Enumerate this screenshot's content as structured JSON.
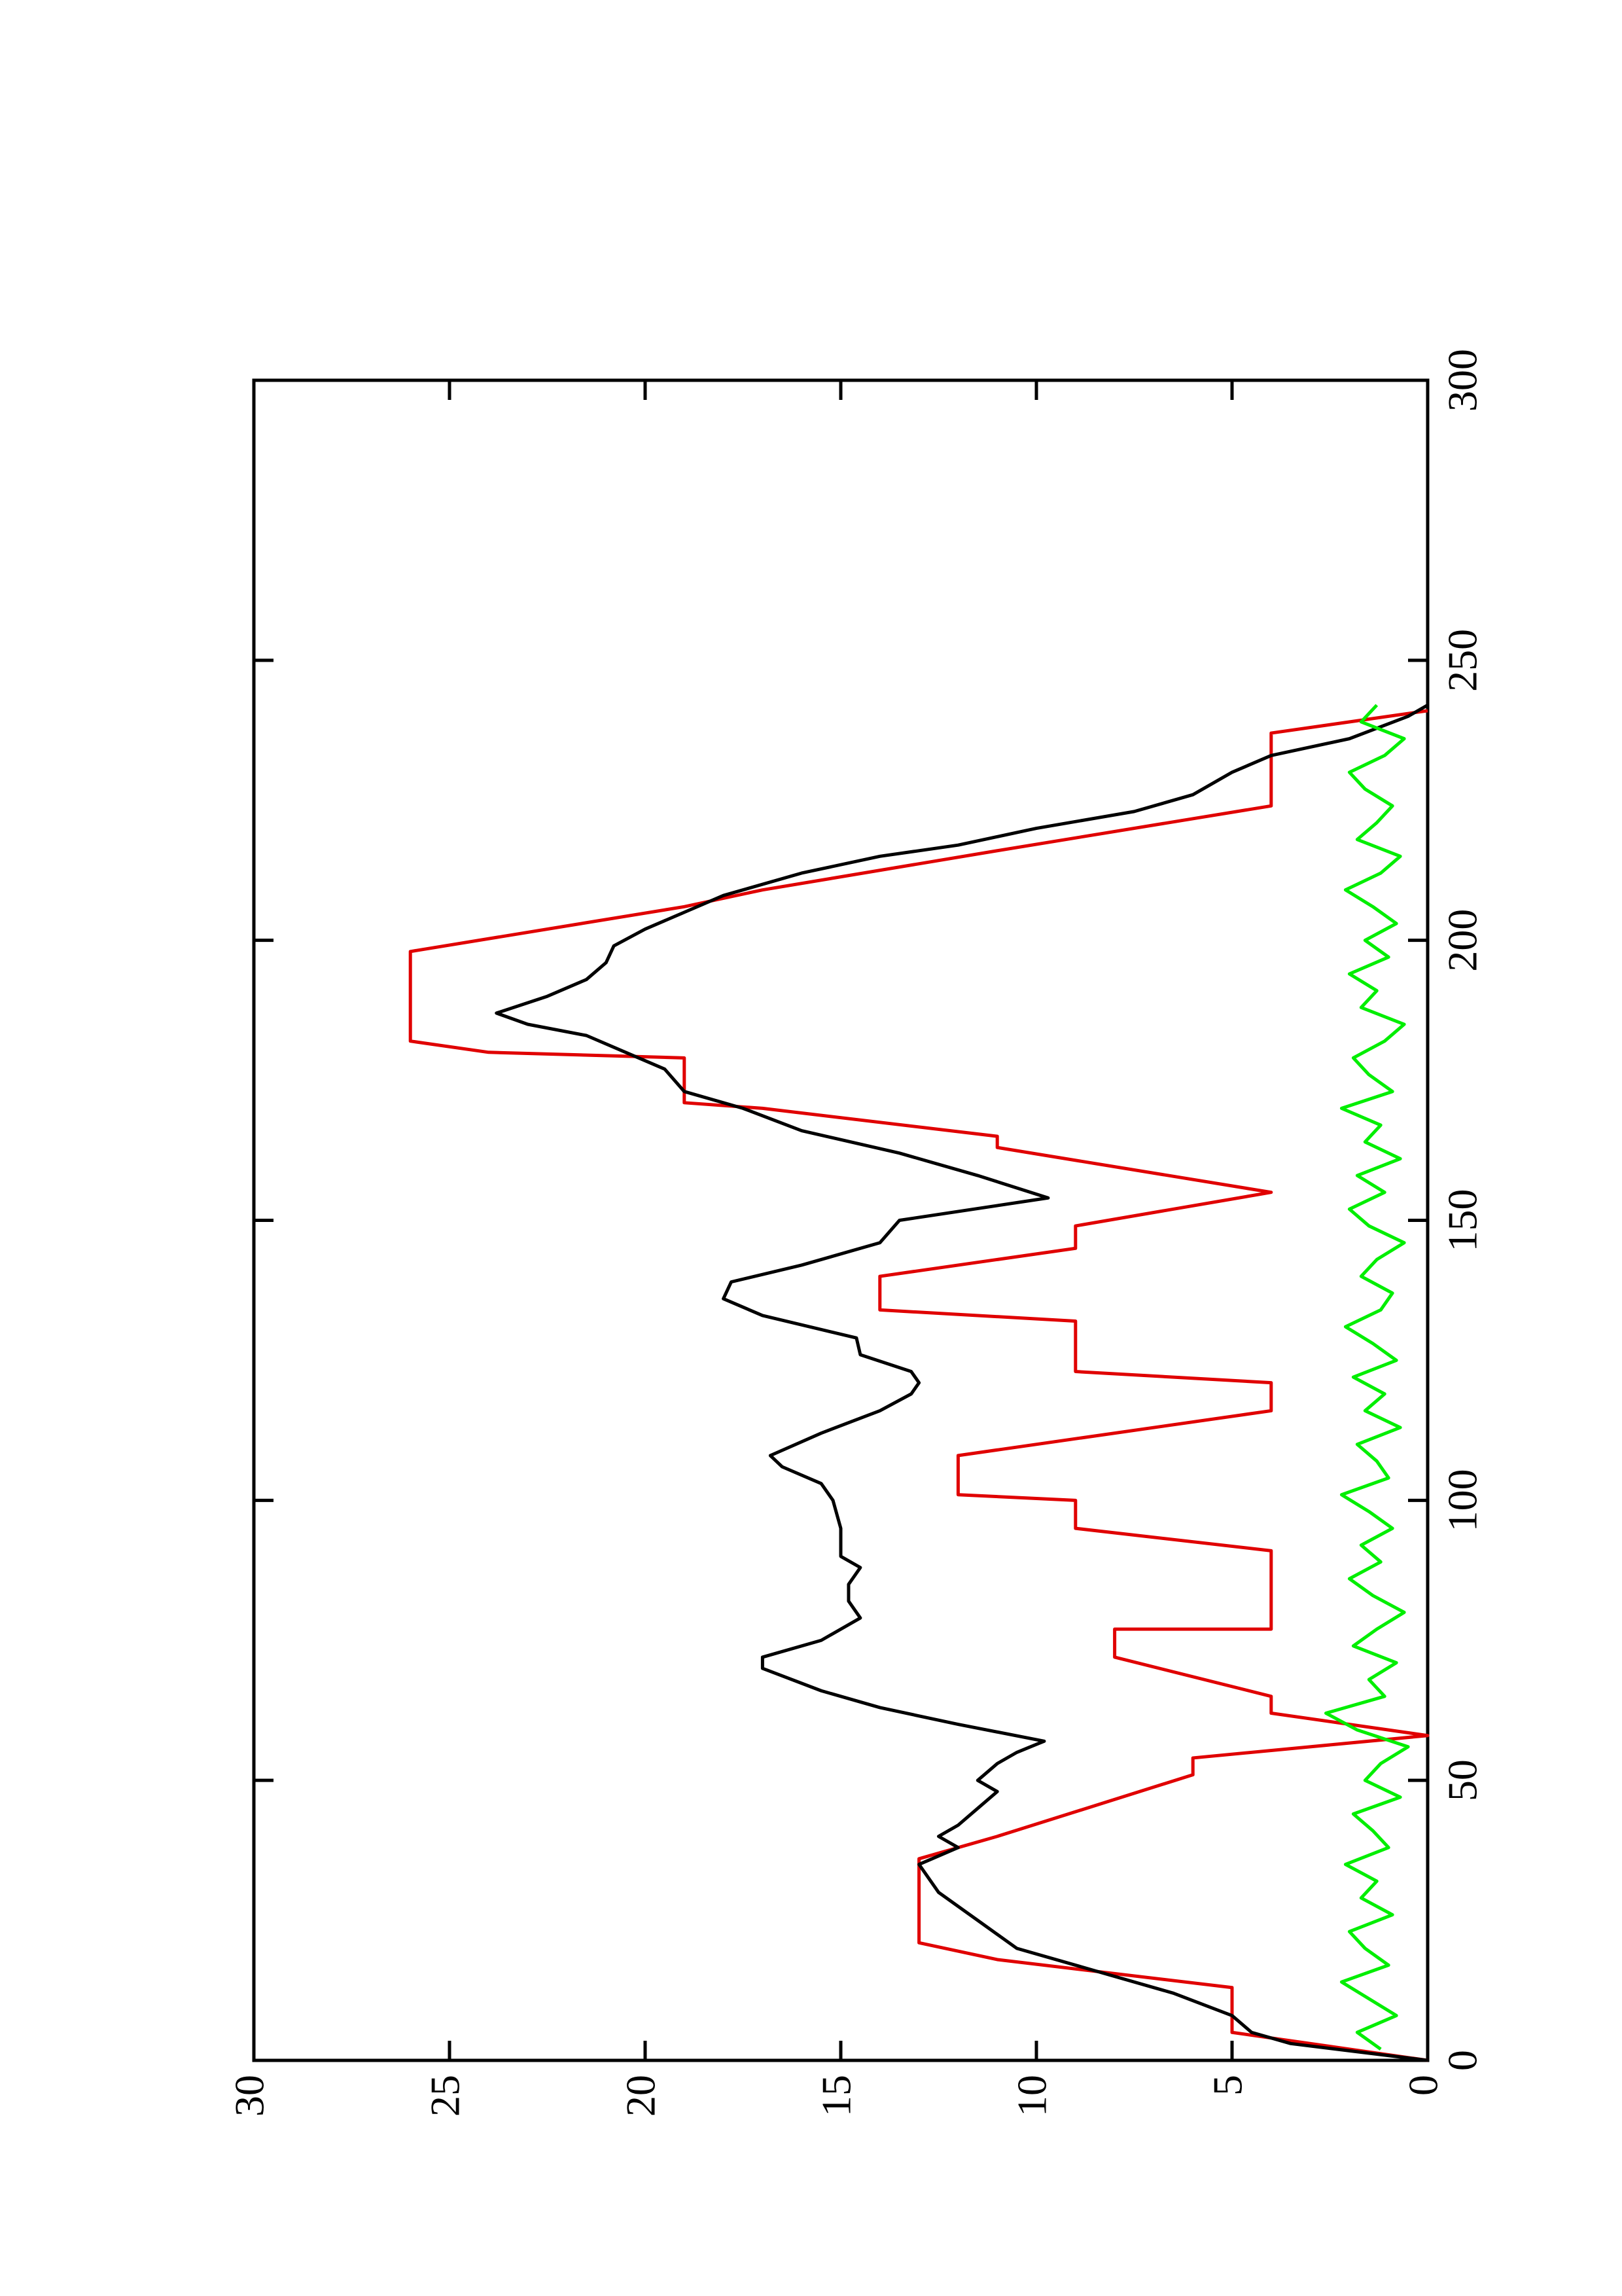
{
  "chart_data": {
    "type": "line",
    "xlim": [
      0,
      300
    ],
    "xticks": [
      0,
      50,
      100,
      150,
      200,
      250,
      300
    ],
    "ylim": [
      0,
      30
    ],
    "yticks": [
      0,
      5,
      10,
      15,
      20,
      25,
      30
    ],
    "rotated": true,
    "series": [
      {
        "color": "#e00000",
        "x": [
          0,
          5,
          13,
          18,
          21,
          36,
          40,
          51,
          54,
          58,
          62,
          65,
          72,
          77,
          77,
          91,
          95,
          100,
          101,
          108,
          116,
          121,
          123,
          132,
          134,
          140,
          145,
          149,
          155,
          163,
          165,
          170,
          171,
          179,
          180,
          182,
          198,
          206,
          209,
          216,
          224,
          237,
          241
        ],
        "values": [
          0,
          5,
          5,
          11,
          13,
          13,
          11,
          6,
          6,
          0,
          4,
          4,
          8,
          8,
          4,
          4,
          9,
          9,
          12,
          12,
          4,
          4,
          9,
          9,
          14,
          14,
          9,
          9,
          4,
          11,
          11,
          17,
          19,
          19,
          24,
          26,
          26,
          19,
          17,
          11,
          4,
          4,
          0
        ]
      },
      {
        "color": "#000000",
        "x": [
          0,
          3,
          5,
          8,
          12,
          16,
          20,
          25,
          30,
          35,
          38,
          40,
          42,
          45,
          48,
          50,
          53,
          55,
          57,
          60,
          63,
          66,
          70,
          72,
          75,
          79,
          82,
          85,
          88,
          90,
          95,
          100,
          103,
          106,
          108,
          112,
          116,
          119,
          121,
          123,
          126,
          129,
          133,
          136,
          139,
          142,
          146,
          150,
          154,
          158,
          162,
          166,
          170,
          173,
          177,
          180,
          183,
          185,
          187,
          190,
          193,
          196,
          199,
          202,
          205,
          208,
          212,
          215,
          217,
          220,
          223,
          226,
          230,
          233,
          236,
          240,
          242
        ],
        "values": [
          0,
          3.5,
          4.5,
          5,
          6.5,
          8.5,
          10.5,
          11.5,
          12.5,
          13,
          12,
          12.5,
          12,
          11.5,
          11,
          11.5,
          11,
          10.5,
          9.8,
          12,
          14,
          15.5,
          17,
          17,
          15.5,
          14.5,
          14.8,
          14.8,
          14.5,
          15,
          15,
          15.2,
          15.5,
          16.5,
          16.8,
          15.5,
          14,
          13.2,
          13,
          13.2,
          14.5,
          14.6,
          17,
          18,
          17.8,
          16,
          14,
          13.5,
          9.7,
          11.5,
          13.5,
          16,
          17.5,
          19,
          19.5,
          20.5,
          21.5,
          23,
          23.8,
          22.5,
          21.5,
          21,
          20.8,
          20,
          19,
          18,
          16,
          14,
          12,
          10,
          7.5,
          6,
          5,
          4,
          2,
          0.5,
          0
        ]
      },
      {
        "color": "#00ee00",
        "x": [
          2,
          5,
          8,
          11,
          14,
          17,
          20,
          23,
          26,
          29,
          32,
          35,
          38,
          41,
          44,
          47,
          50,
          53,
          56,
          59,
          62,
          65,
          68,
          71,
          74,
          77,
          80,
          83,
          86,
          89,
          92,
          95,
          98,
          101,
          104,
          107,
          110,
          113,
          116,
          119,
          122,
          125,
          128,
          131,
          134,
          137,
          140,
          143,
          146,
          149,
          152,
          155,
          158,
          161,
          164,
          167,
          170,
          173,
          176,
          179,
          182,
          185,
          188,
          191,
          194,
          197,
          200,
          203,
          206,
          209,
          212,
          215,
          218,
          221,
          224,
          227,
          230,
          233,
          236,
          239,
          242
        ],
        "values": [
          1.2,
          1.8,
          0.8,
          1.5,
          2.2,
          1.0,
          1.6,
          2.0,
          0.9,
          1.7,
          1.3,
          2.1,
          1.0,
          1.4,
          1.9,
          0.7,
          1.6,
          1.2,
          0.5,
          1.8,
          2.6,
          1.1,
          1.5,
          0.8,
          1.9,
          1.3,
          0.6,
          1.4,
          2.0,
          1.2,
          1.7,
          0.9,
          1.5,
          2.2,
          1.0,
          1.3,
          1.8,
          0.7,
          1.6,
          1.1,
          1.9,
          0.8,
          1.4,
          2.1,
          1.2,
          0.9,
          1.7,
          1.3,
          0.6,
          1.5,
          2.0,
          1.1,
          1.8,
          0.7,
          1.6,
          1.2,
          2.2,
          0.9,
          1.5,
          1.9,
          1.1,
          0.6,
          1.7,
          1.3,
          2.0,
          1.0,
          1.6,
          0.8,
          1.4,
          2.1,
          1.2,
          0.7,
          1.8,
          1.3,
          0.9,
          1.6,
          2.0,
          1.1,
          0.6,
          1.7,
          1.3
        ]
      }
    ]
  }
}
